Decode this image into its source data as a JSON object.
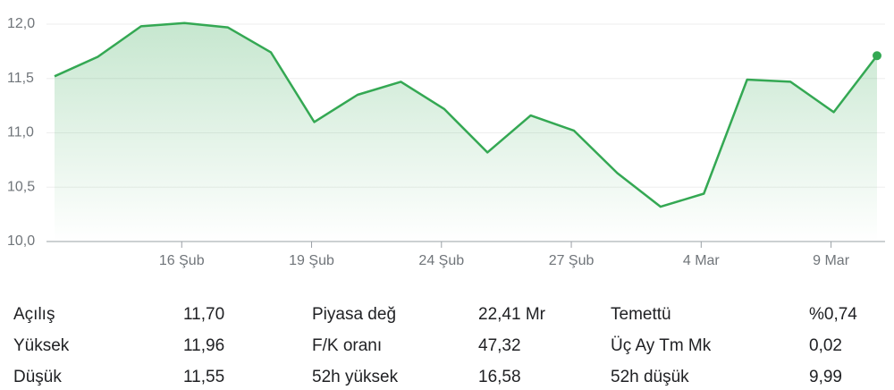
{
  "chart_data": {
    "type": "line",
    "categories": [
      null,
      null,
      null,
      "16 Şub",
      null,
      null,
      "19 Şub",
      null,
      null,
      "24 Şub",
      null,
      null,
      "27 Şub",
      null,
      null,
      "4 Mar",
      null,
      null,
      "9 Mar",
      null
    ],
    "values": [
      11.52,
      11.7,
      11.98,
      12.01,
      11.97,
      11.74,
      11.1,
      11.35,
      11.47,
      11.22,
      10.82,
      11.16,
      11.02,
      10.63,
      10.32,
      10.44,
      11.49,
      11.47,
      11.19,
      11.71
    ],
    "color": "#34a853",
    "ylim": [
      10.0,
      12.0
    ],
    "yticks": [
      {
        "value": 10.0,
        "label": "10,0"
      },
      {
        "value": 10.5,
        "label": "10,5"
      },
      {
        "value": 11.0,
        "label": "11,0"
      },
      {
        "value": 11.5,
        "label": "11,5"
      },
      {
        "value": 12.0,
        "label": "12,0"
      }
    ],
    "grid": true
  },
  "stats": {
    "columns": [
      {
        "rows": [
          {
            "label": "Açılış",
            "value": "11,70"
          },
          {
            "label": "Yüksek",
            "value": "11,96"
          },
          {
            "label": "Düşük",
            "value": "11,55"
          }
        ]
      },
      {
        "rows": [
          {
            "label": "Piyasa değ",
            "value": "22,41 Mr"
          },
          {
            "label": "F/K oranı",
            "value": "47,32"
          },
          {
            "label": "52h yüksek",
            "value": "16,58"
          }
        ]
      },
      {
        "rows": [
          {
            "label": "Temettü",
            "value": "%0,74"
          },
          {
            "label": "Üç Ay Tm Mk",
            "value": "0,02"
          },
          {
            "label": "52h düşük",
            "value": "9,99"
          }
        ]
      }
    ]
  }
}
